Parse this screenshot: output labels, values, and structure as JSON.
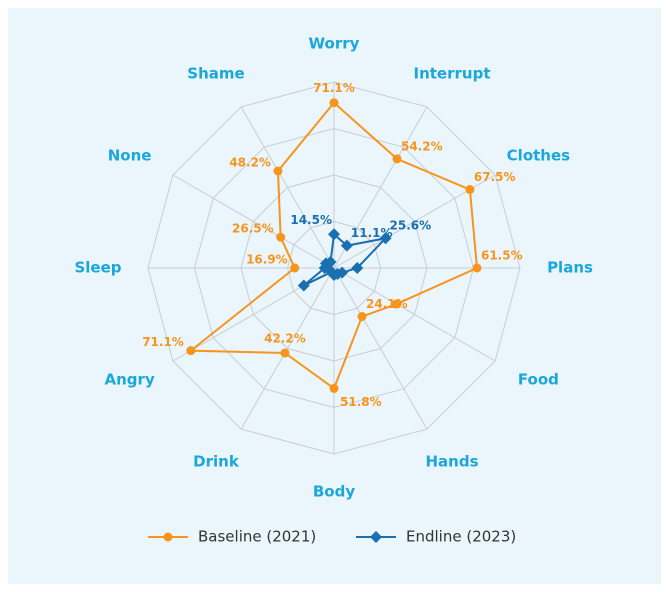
{
  "chart_data": {
    "type": "radar",
    "categories": [
      "Worry",
      "Interrupt",
      "Clothes",
      "Plans",
      "Food",
      "Hands",
      "Body",
      "Drink",
      "Angry",
      "Sleep",
      "None",
      "Shame"
    ],
    "series": [
      {
        "name": "Baseline (2021)",
        "color": "#f7941d",
        "marker": "circle",
        "values": [
          71.1,
          54.2,
          67.5,
          61.5,
          31,
          24.1,
          51.8,
          42.2,
          71.1,
          16.9,
          26.5,
          48.2
        ],
        "value_labels": [
          "71.1%",
          "54.2%",
          "67.5%",
          "61.5%",
          null,
          "24.1%",
          "51.8%",
          "42.2%",
          "71.1%",
          "16.9%",
          "26.5%",
          "48.2%"
        ]
      },
      {
        "name": "Endline (2023)",
        "color": "#1a6fb0",
        "marker": "diamond",
        "values": [
          14.5,
          11.1,
          25.6,
          10,
          4,
          3,
          3,
          2,
          15,
          4,
          4,
          3
        ],
        "value_labels": [
          "14.5%",
          "11.1%",
          "25.6%",
          null,
          null,
          null,
          null,
          null,
          null,
          null,
          null,
          null
        ]
      }
    ],
    "ylim": [
      0,
      80
    ],
    "yticks": [
      0,
      20,
      40,
      60,
      80
    ],
    "grid": true,
    "legend": "bottom"
  }
}
